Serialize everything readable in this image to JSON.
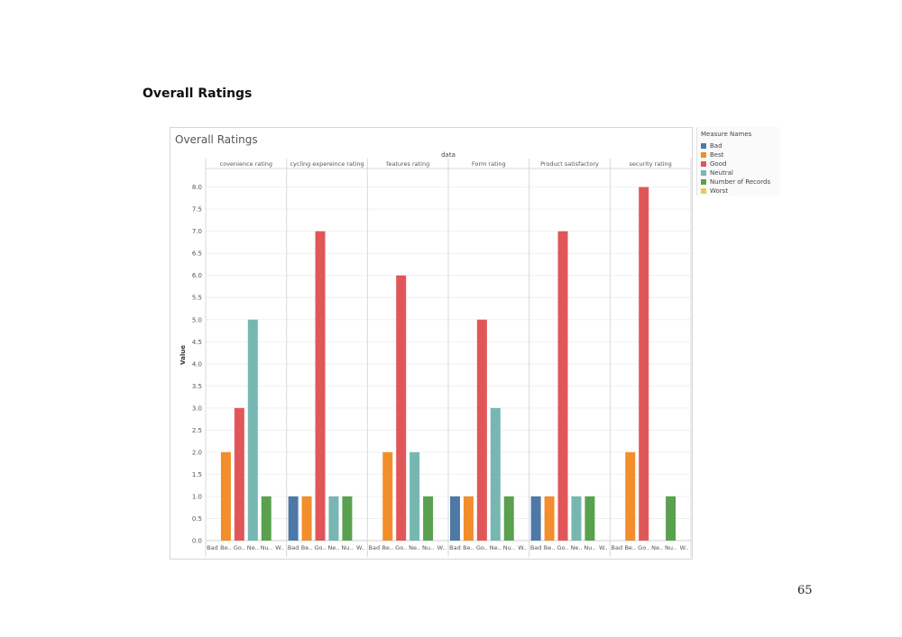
{
  "page": {
    "heading": "Overall Ratings",
    "page_number": "65"
  },
  "chart_data": {
    "type": "bar",
    "title": "Overall Ratings",
    "column_header": "data",
    "ylabel": "Value",
    "ylim": [
      0,
      8.4
    ],
    "y_ticks": [
      "0.0",
      "0.5",
      "1.0",
      "1.5",
      "2.0",
      "2.5",
      "3.0",
      "3.5",
      "4.0",
      "4.5",
      "5.0",
      "5.5",
      "6.0",
      "6.5",
      "7.0",
      "7.5",
      "8.0"
    ],
    "groups": [
      "covenience rating",
      "cycling expereince rating",
      "features rating",
      "Form rating",
      "Product satisfactory",
      "security rating"
    ],
    "categories": [
      "Bad",
      "Best",
      "Good",
      "Neutral",
      "Number of Records",
      "Worst"
    ],
    "category_tick_labels": [
      "Bad",
      "Be..",
      "Go..",
      "Ne..",
      "Nu..",
      "W.."
    ],
    "series": [
      {
        "name": "Bad",
        "color": "#4e79a7",
        "values": [
          null,
          1,
          null,
          1,
          1,
          null
        ]
      },
      {
        "name": "Best",
        "color": "#f28e2b",
        "values": [
          2,
          1,
          2,
          1,
          1,
          2
        ]
      },
      {
        "name": "Good",
        "color": "#e15759",
        "values": [
          3,
          7,
          6,
          5,
          7,
          8
        ]
      },
      {
        "name": "Neutral",
        "color": "#76b7b2",
        "values": [
          5,
          1,
          2,
          3,
          1,
          null
        ]
      },
      {
        "name": "Number of Records",
        "color": "#59a14f",
        "values": [
          1,
          1,
          1,
          1,
          1,
          1
        ]
      },
      {
        "name": "Worst",
        "color": "#edc948",
        "values": [
          null,
          null,
          null,
          null,
          null,
          null
        ]
      }
    ],
    "legend": {
      "title": "Measure Names",
      "position": "right"
    }
  }
}
